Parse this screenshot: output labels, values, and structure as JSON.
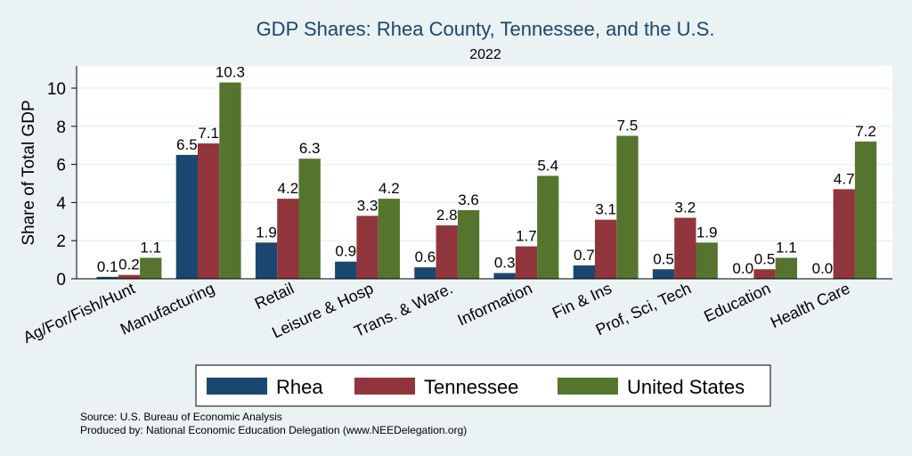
{
  "chart_data": {
    "type": "bar",
    "title": "GDP Shares: Rhea County, Tennessee, and the U.S.",
    "subtitle": "2022",
    "xlabel": "",
    "ylabel": "Share of Total GDP",
    "ylim": [
      0,
      11
    ],
    "yticks": [
      0,
      2,
      4,
      6,
      8,
      10
    ],
    "grid": true,
    "legend_placement": "bottom",
    "categories": [
      "Ag/For/Fish/Hunt",
      "Manufacturing",
      "Retail",
      "Leisure & Hosp",
      "Trans. & Ware.",
      "Information",
      "Fin & Ins",
      "Prof, Sci, Tech",
      "Education",
      "Health Care"
    ],
    "series": [
      {
        "name": "Rhea",
        "color": "#1a476f",
        "values": [
          0.1,
          6.5,
          1.9,
          0.9,
          0.6,
          0.3,
          0.7,
          0.5,
          0.0,
          0.0
        ]
      },
      {
        "name": "Tennessee",
        "color": "#90353b",
        "values": [
          0.2,
          7.1,
          4.2,
          3.3,
          2.8,
          1.7,
          3.1,
          3.2,
          0.5,
          4.7
        ]
      },
      {
        "name": "United States",
        "color": "#55752f",
        "values": [
          1.1,
          10.3,
          6.3,
          4.2,
          3.6,
          5.4,
          7.5,
          1.9,
          1.1,
          7.2
        ]
      }
    ]
  },
  "notes": {
    "source": "Source: U.S. Bureau of Economic Analysis",
    "produced": "Produced by: National Economic Education Delegation (www.NEEDelegation.org)"
  }
}
